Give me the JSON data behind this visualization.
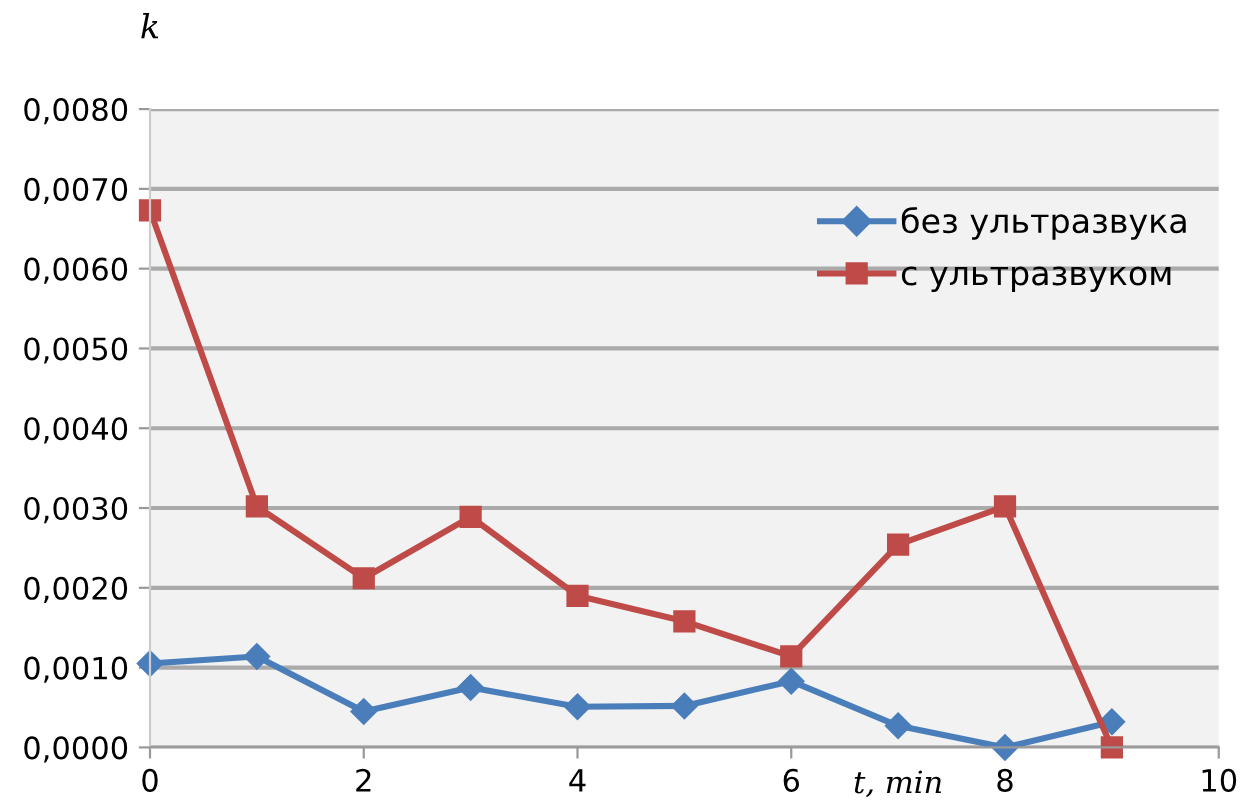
{
  "chart_data": {
    "type": "line",
    "xlabel": "t, min",
    "ylabel": "k",
    "xlim": [
      0,
      10
    ],
    "xticks": [
      0,
      2,
      4,
      6,
      8,
      10
    ],
    "ylim": [
      0,
      0.008
    ],
    "yticks": [
      {
        "value": 0,
        "label": "0,0000"
      },
      {
        "value": 0.001,
        "label": "0,0010"
      },
      {
        "value": 0.002,
        "label": "0,0020"
      },
      {
        "value": 0.003,
        "label": "0,0030"
      },
      {
        "value": 0.004,
        "label": "0,0040"
      },
      {
        "value": 0.005,
        "label": "0,0050"
      },
      {
        "value": 0.006,
        "label": "0,0060"
      },
      {
        "value": 0.007,
        "label": "0,0070"
      },
      {
        "value": 0.008,
        "label": "0,0080"
      }
    ],
    "x": [
      0,
      1,
      2,
      3,
      4,
      5,
      6,
      7,
      8,
      9
    ],
    "series": [
      {
        "name": "без ультразвука",
        "color": "#4a7ebb",
        "marker": "diamond",
        "values": [
          0.00105,
          0.00114,
          0.00045,
          0.00075,
          0.00051,
          0.00052,
          0.00083,
          0.00027,
          0.0,
          0.00032
        ]
      },
      {
        "name": "с ультразвуком",
        "color": "#be4b48",
        "marker": "square",
        "values": [
          0.00673,
          0.00302,
          0.00212,
          0.00289,
          0.0019,
          0.00158,
          0.00114,
          0.00254,
          0.00302,
          0.0
        ]
      }
    ],
    "grid": "y",
    "legend": "right",
    "line_style": "solid"
  }
}
